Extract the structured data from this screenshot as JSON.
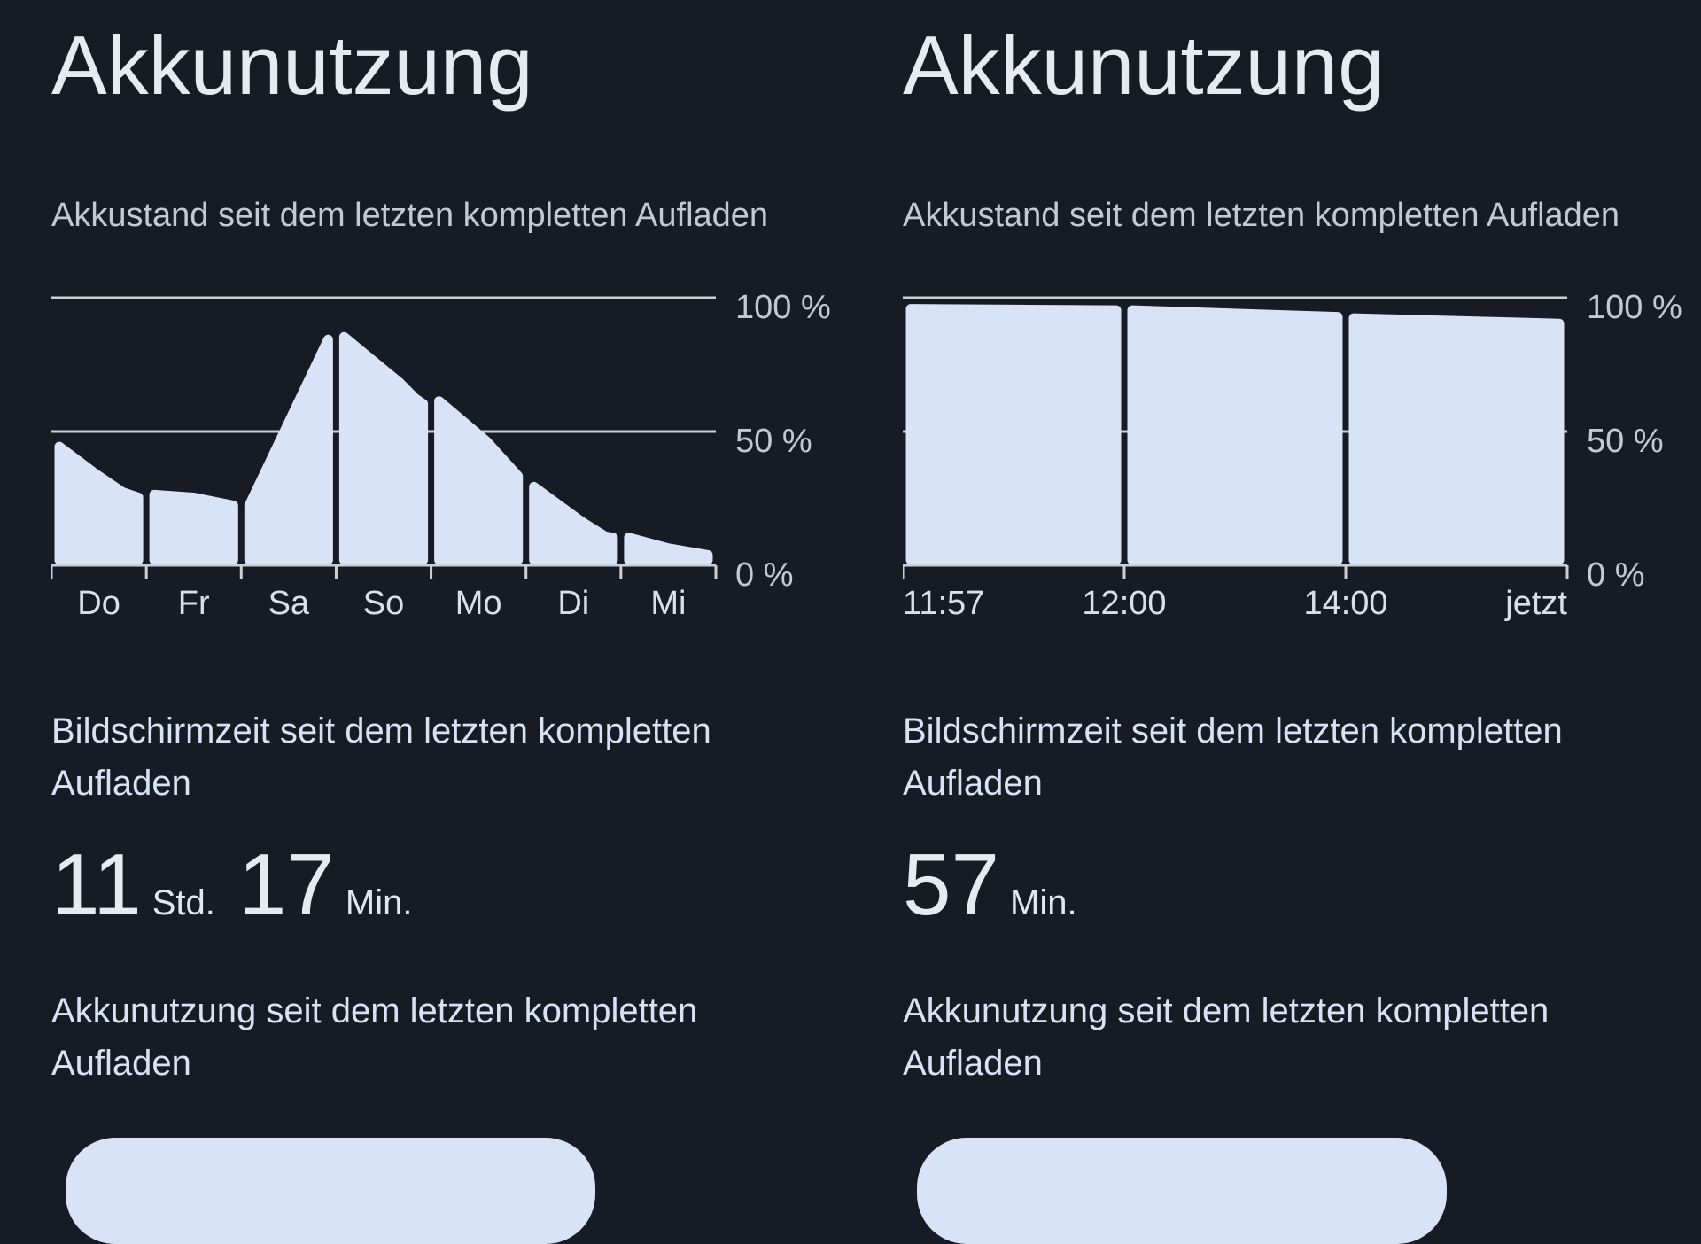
{
  "colors": {
    "background": "#171b24",
    "bar": "#d8e3f8",
    "grid": "#ccd0d6",
    "title": "#e7eaf1",
    "subtitle": "#c3c8d1",
    "y_label": "#c3c8d1",
    "x_label": "#dbe0e8",
    "section_label": "#d9e2f3",
    "stat_number": "#e7eaf1"
  },
  "panels": [
    {
      "title": "Akkunutzung",
      "subtitle": "Akkustand seit dem letzten kompletten Aufladen",
      "screen_time_label_line1": "Bildschirmzeit seit dem letzten kompletten",
      "screen_time_label_line2": "Aufladen",
      "screen_time": {
        "hours": "11",
        "hours_unit": "Std.",
        "minutes": "17",
        "minutes_unit": "Min."
      },
      "usage_label_line1": "Akkunutzung seit dem letzten kompletten",
      "usage_label_line2": "Aufladen",
      "chart_data": {
        "type": "area",
        "title": "Akkustand seit dem letzten kompletten Aufladen",
        "ylim": [
          0,
          100
        ],
        "unit": "%",
        "grid": true,
        "gridlines": [
          {
            "pct": 100,
            "label": "100 %"
          },
          {
            "pct": 50,
            "label": "50 %"
          },
          {
            "pct": 0,
            "label": "0 %"
          }
        ],
        "tick_positions": [
          0,
          0.1429,
          0.2857,
          0.4286,
          0.5714,
          0.7143,
          0.8571,
          1
        ],
        "x_labels": [
          {
            "text": "Do",
            "pos": 0.0714,
            "anchor": "middle"
          },
          {
            "text": "Fr",
            "pos": 0.2143,
            "anchor": "middle"
          },
          {
            "text": "Sa",
            "pos": 0.3571,
            "anchor": "middle"
          },
          {
            "text": "So",
            "pos": 0.5,
            "anchor": "middle"
          },
          {
            "text": "Mo",
            "pos": 0.6429,
            "anchor": "middle"
          },
          {
            "text": "Di",
            "pos": 0.7857,
            "anchor": "middle"
          },
          {
            "text": "Mi",
            "pos": 0.9286,
            "anchor": "middle"
          }
        ],
        "segments": [
          {
            "label": "Do",
            "points": [
              [
                0,
                46
              ],
              [
                0.45,
                36
              ],
              [
                0.8,
                29
              ],
              [
                1,
                27
              ]
            ]
          },
          {
            "label": "Fr",
            "points": [
              [
                0,
                28
              ],
              [
                0.5,
                27
              ],
              [
                1,
                24
              ]
            ]
          },
          {
            "label": "Sa",
            "points": [
              [
                0,
                24
              ],
              [
                1,
                86
              ]
            ]
          },
          {
            "label": "So",
            "points": [
              [
                0,
                87
              ],
              [
                0.7,
                70
              ],
              [
                0.9,
                64
              ],
              [
                1,
                62
              ]
            ]
          },
          {
            "label": "Mo",
            "points": [
              [
                0,
                63
              ],
              [
                0.6,
                48
              ],
              [
                1,
                35
              ]
            ]
          },
          {
            "label": "Di",
            "points": [
              [
                0,
                31
              ],
              [
                0.6,
                18
              ],
              [
                0.9,
                12.5
              ],
              [
                1,
                12
              ]
            ]
          },
          {
            "label": "Mi",
            "points": [
              [
                0,
                12
              ],
              [
                0.5,
                8
              ],
              [
                1,
                5.5
              ]
            ]
          }
        ]
      }
    },
    {
      "title": "Akkunutzung",
      "subtitle": "Akkustand seit dem letzten kompletten Aufladen",
      "screen_time_label_line1": "Bildschirmzeit seit dem letzten kompletten",
      "screen_time_label_line2": "Aufladen",
      "screen_time": {
        "minutes": "57",
        "minutes_unit": "Min."
      },
      "usage_label_line1": "Akkunutzung seit dem letzten kompletten",
      "usage_label_line2": "Aufladen",
      "chart_data": {
        "type": "area",
        "title": "Akkustand seit dem letzten kompletten Aufladen",
        "ylim": [
          0,
          100
        ],
        "unit": "%",
        "grid": true,
        "gridlines": [
          {
            "pct": 100,
            "label": "100 %"
          },
          {
            "pct": 50,
            "label": "50 %"
          },
          {
            "pct": 0,
            "label": "0 %"
          }
        ],
        "tick_positions": [
          0,
          0.3333,
          0.6667,
          1
        ],
        "x_labels": [
          {
            "text": "11:57",
            "pos": 0,
            "anchor": "start"
          },
          {
            "text": "12:00",
            "pos": 0.3333,
            "anchor": "middle"
          },
          {
            "text": "14:00",
            "pos": 0.6667,
            "anchor": "middle"
          },
          {
            "text": "jetzt",
            "pos": 1,
            "anchor": "end"
          }
        ],
        "segments": [
          {
            "label": "11:57-12:00",
            "points": [
              [
                0,
                97.5
              ],
              [
                1,
                97
              ]
            ]
          },
          {
            "label": "12:00-14:00",
            "points": [
              [
                0,
                97
              ],
              [
                1,
                94.5
              ]
            ]
          },
          {
            "label": "14:00-jetzt",
            "points": [
              [
                0,
                94
              ],
              [
                0.85,
                92.3
              ],
              [
                1,
                92
              ]
            ]
          }
        ]
      }
    }
  ]
}
